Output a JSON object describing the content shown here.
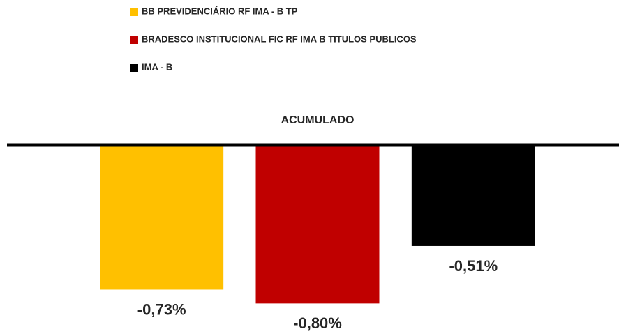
{
  "chart_data": {
    "type": "bar",
    "categories": [
      "ACUMULADO"
    ],
    "series": [
      {
        "name": "BB PREVIDENCIÁRIO RF IMA - B TP",
        "color": "#ffc000",
        "values": [
          -0.73
        ],
        "value_labels": [
          "-0,73%"
        ]
      },
      {
        "name": "BRADESCO INSTITUCIONAL FIC RF IMA B TITULOS PUBLICOS",
        "color": "#c00000",
        "values": [
          -0.8
        ],
        "value_labels": [
          "-0,80%"
        ]
      },
      {
        "name": "IMA - B",
        "color": "#000000",
        "values": [
          -0.51
        ],
        "value_labels": [
          "-0,51%"
        ]
      }
    ],
    "ylim": [
      -0.95,
      0
    ],
    "legend": "top"
  }
}
